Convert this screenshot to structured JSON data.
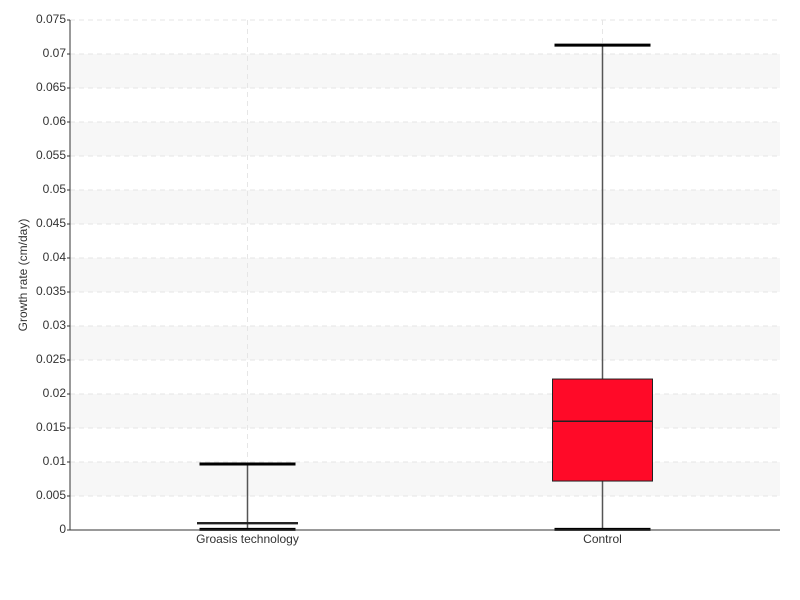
{
  "chart_data": {
    "type": "box",
    "y_label": "Growth rate (cm/day)",
    "boxes": [
      {
        "name": "Groasis technology",
        "color": "#2d6a1f",
        "min": 0.0001,
        "q1": 0.0009,
        "median": 0.001,
        "q3": 0.0011,
        "max": 0.0097
      },
      {
        "name": "Control",
        "color": "#ff0a28",
        "min": 0.0001,
        "q1": 0.0072,
        "median": 0.016,
        "q3": 0.0222,
        "max": 0.0713
      }
    ],
    "ylim": [
      0,
      0.075
    ],
    "yticks": [
      0,
      0.005,
      0.01,
      0.015,
      0.02,
      0.025,
      0.03,
      0.035,
      0.04,
      0.045,
      0.05,
      0.055,
      0.06,
      0.065,
      0.07,
      0.075
    ],
    "grid": true
  }
}
